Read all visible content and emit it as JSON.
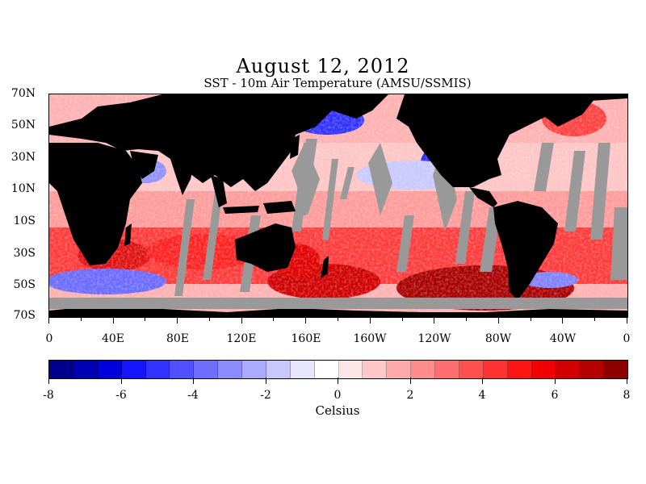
{
  "title": "August 12, 2012",
  "subtitle": "SST - 10m Air Temperature (AMSU/SSMIS)",
  "lat_labels": [
    "70N",
    "50N",
    "30N",
    "10N",
    "10S",
    "30S",
    "50S",
    "70S"
  ],
  "lon_labels": [
    "0",
    "40E",
    "80E",
    "120E",
    "160E",
    "160W",
    "120W",
    "80W",
    "40W",
    "0"
  ],
  "colorbar": {
    "tick_labels": [
      "-8",
      "-6",
      "-4",
      "-2",
      "0",
      "2",
      "4",
      "6",
      "8"
    ],
    "units": "Celsius",
    "range": [
      -8,
      8
    ],
    "colors": [
      "#00008c",
      "#0000b4",
      "#0000dc",
      "#1414ff",
      "#3232ff",
      "#5050ff",
      "#6e6eff",
      "#8c8cff",
      "#aaaaff",
      "#c8c8ff",
      "#e6e6ff",
      "#ffffff",
      "#ffe6e6",
      "#ffc8c8",
      "#ffaaaa",
      "#ff8c8c",
      "#ff6e6e",
      "#ff5050",
      "#ff3232",
      "#ff1414",
      "#f00000",
      "#d20000",
      "#b40000",
      "#8c0000"
    ]
  },
  "colors": {
    "land": "#000000",
    "missing": "#999999",
    "ocean_warm": "#ff6060",
    "ocean_cold": "#6060ff"
  }
}
